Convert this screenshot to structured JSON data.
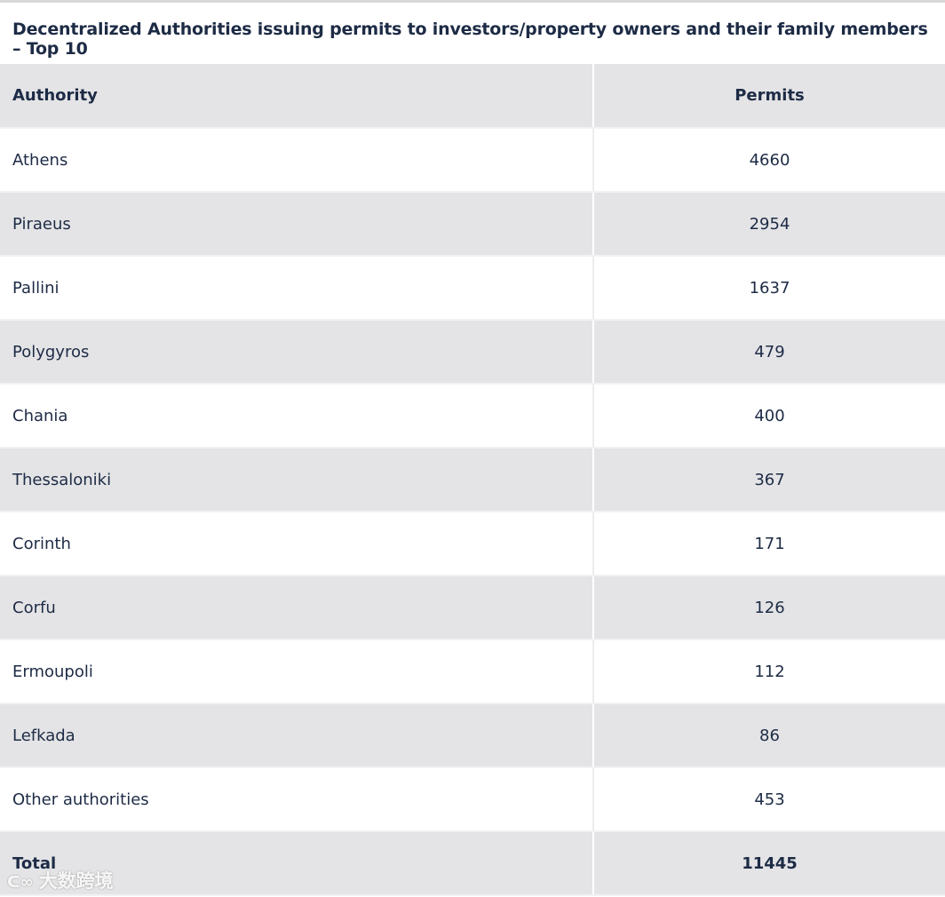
{
  "title": "Decentralized Authorities issuing permits to investors/property owners and their family members – Top 10",
  "columns": [
    "Authority",
    "Permits"
  ],
  "rows": [
    {
      "authority": "Athens",
      "permits": "4660"
    },
    {
      "authority": "Piraeus",
      "permits": "2954"
    },
    {
      "authority": "Pallini",
      "permits": "1637"
    },
    {
      "authority": "Polygyros",
      "permits": "479"
    },
    {
      "authority": "Chania",
      "permits": "400"
    },
    {
      "authority": "Thessaloniki",
      "permits": "367"
    },
    {
      "authority": "Corinth",
      "permits": "171"
    },
    {
      "authority": "Corfu",
      "permits": "126"
    },
    {
      "authority": "Ermoupoli",
      "permits": "112"
    },
    {
      "authority": "Lefkada",
      "permits": "86"
    },
    {
      "authority": "Other authorities",
      "permits": "453"
    }
  ],
  "total": {
    "label": "Total",
    "permits": "11445"
  },
  "watermark": "大数跨境"
}
